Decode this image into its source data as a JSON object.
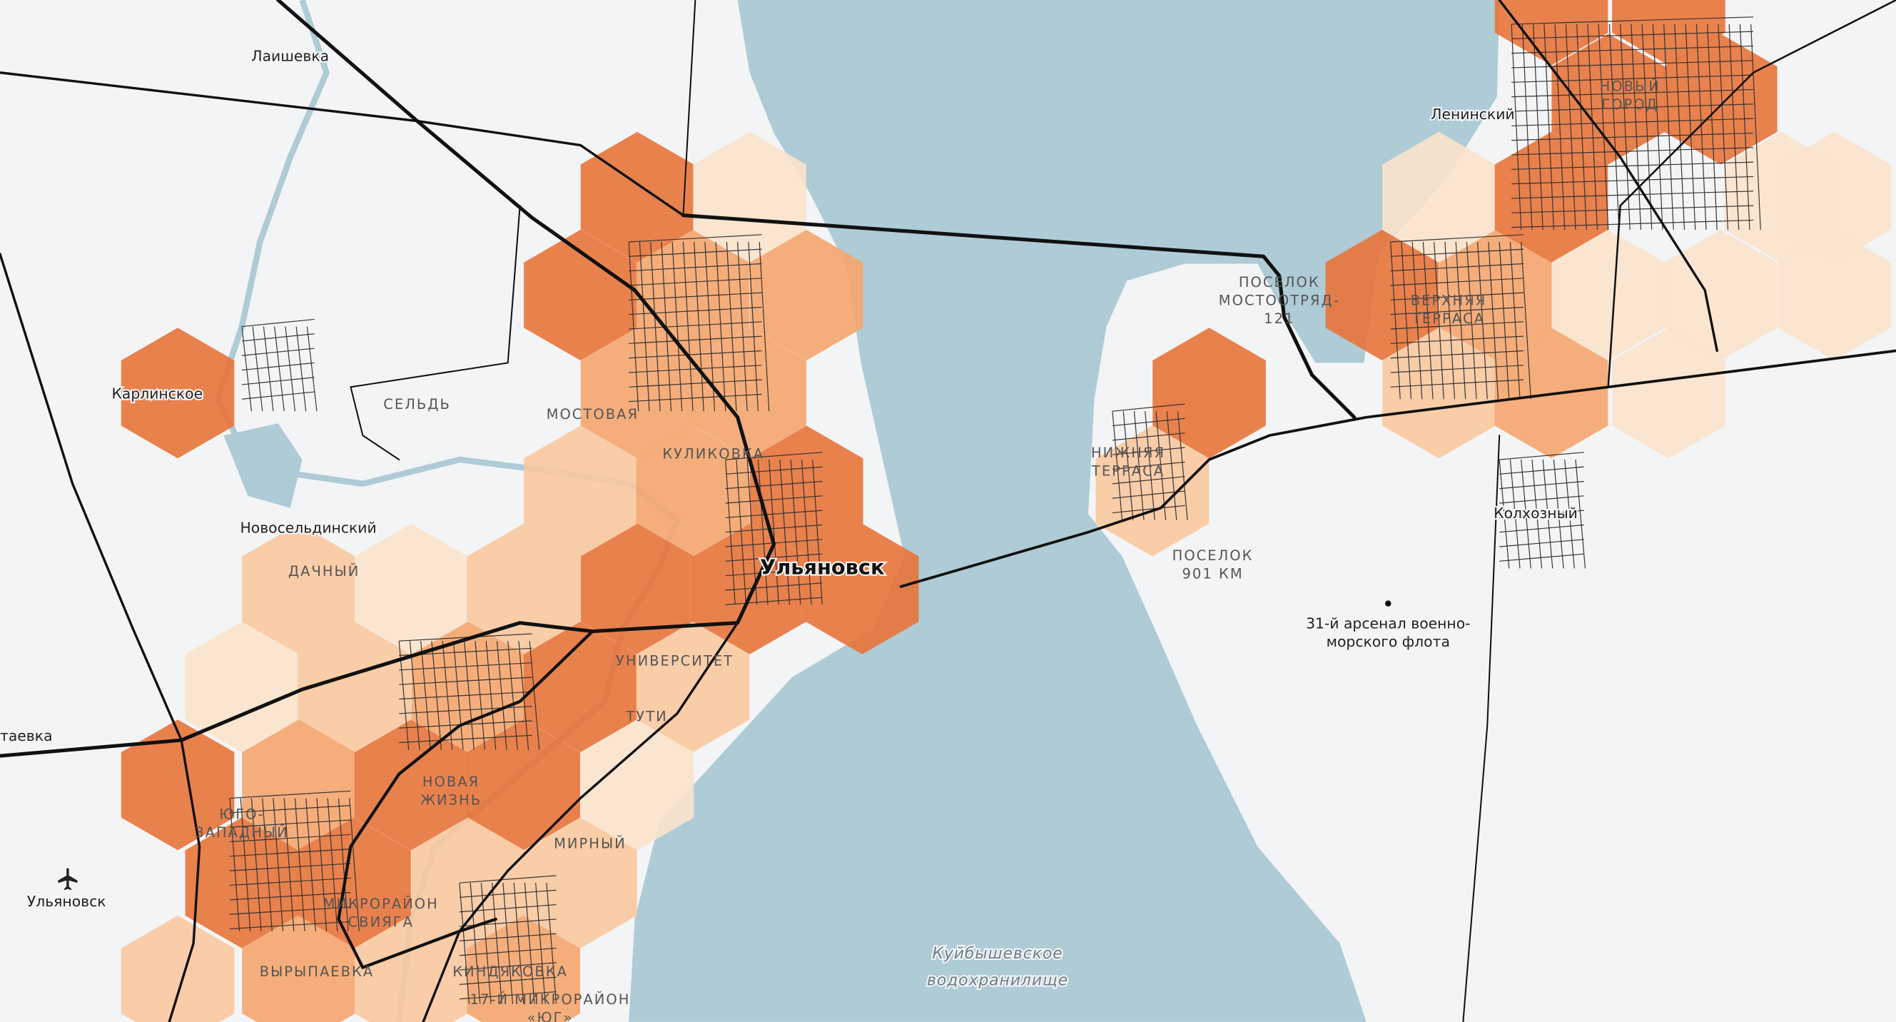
{
  "map": {
    "labels": [
      {
        "lines": [
          "Лаишевка"
        ]
      },
      {
        "lines": [
          "Карлинское"
        ]
      },
      {
        "lines": [
          "СЕЛЬДЬ"
        ]
      },
      {
        "lines": [
          "МОСТОВАЯ"
        ]
      },
      {
        "lines": [
          "КУЛИКОВКА"
        ]
      },
      {
        "lines": [
          "Новосельдинский"
        ]
      },
      {
        "lines": [
          "ДАЧНЫЙ"
        ]
      },
      {
        "lines": [
          "Ульяновск"
        ]
      },
      {
        "lines": [
          "УНИВЕРСИТЕТ"
        ]
      },
      {
        "lines": [
          "ТУТИ"
        ]
      },
      {
        "lines": [
          "НОВАЯ",
          "ЖИЗНЬ"
        ]
      },
      {
        "lines": [
          "ЮГО-",
          "ЗАПАДНЫЙ"
        ]
      },
      {
        "lines": [
          "МИРНЫЙ"
        ]
      },
      {
        "lines": [
          "Ульяновск"
        ]
      },
      {
        "lines": [
          "МИКРОРАЙОН",
          "СВИЯГА"
        ]
      },
      {
        "lines": [
          "ВЫРЫПАЕВКА"
        ]
      },
      {
        "lines": [
          "КИНДЯКОВКА"
        ]
      },
      {
        "lines": [
          "17-Й МИКРОРАЙОН",
          "«ЮГ»"
        ]
      },
      {
        "lines": [
          "Куйбышевское",
          "водохранилище"
        ]
      },
      {
        "lines": [
          "НИЖНЯЯ",
          "ТЕРРАСА"
        ]
      },
      {
        "lines": [
          "ПОСЕЛОК",
          "901 КМ"
        ]
      },
      {
        "lines": [
          "ПОСЕЛОК",
          "МОСТООТРЯД-",
          "121"
        ]
      },
      {
        "lines": [
          "ВЕРХНЯЯ",
          "ТЕРРАСА"
        ]
      },
      {
        "lines": [
          "Ленинский"
        ]
      },
      {
        "lines": [
          "НОВЫЙ",
          "ГОРОД"
        ]
      },
      {
        "lines": [
          "Колхозный"
        ]
      },
      {
        "lines": [
          "31-й арсенал военно-",
          "морского флота"
        ]
      },
      {
        "lines": [
          "таевка"
        ]
      }
    ]
  }
}
